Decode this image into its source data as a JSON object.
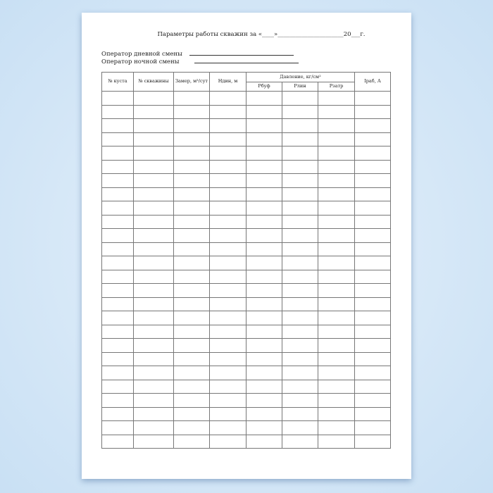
{
  "document": {
    "title": "Параметры работы скважин за «____»______________________20___г.",
    "operator_day": "Оператор дневной смены",
    "operator_night": "Оператор ночной смены",
    "table": {
      "headers": {
        "bush_no": "№ куста",
        "well_no": "№ скважины",
        "measure": "Замер, м³/сут",
        "h_dyn": "Ндин, м",
        "pressure": "Давление, кг/см²",
        "p_buf": "Рбуф",
        "p_lin": "Рлин",
        "p_zatr": "Рзатр",
        "i_rab": "Iраб, А"
      }
    }
  }
}
